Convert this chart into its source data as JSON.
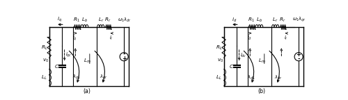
{
  "fig_width": 5.0,
  "fig_height": 1.44,
  "dpi": 100,
  "bg_color": "#ffffff",
  "circuits": [
    {
      "top_curr": "i_q",
      "ir_lbl": "i_r",
      "ic_lbl": "i_{qc}",
      "i1_lbl": "i_q",
      "rl_lbl": "R_L",
      "ll_lbl": "L_L",
      "v0_lbl": "v_0",
      "r1_lbl": "R_1",
      "lb_lbl": "L_b",
      "lr_lbl": "L_r",
      "rr_lbl": "R_r",
      "src_lbl": "\\omega_1\\lambda_{dr}",
      "c_lbl": "C",
      "lm_lbl": "L_m",
      "lam1_lbl": "\\lambda_{q1}",
      "lamr_lbl": "\\lambda_{qr}",
      "sub_lbl": "(a)",
      "src_pm_top": "-",
      "src_pm_bot": "+",
      "i1_up": true,
      "ir_up": false
    },
    {
      "top_curr": "i_d",
      "ir_lbl": "i_r",
      "ic_lbl": "i_{dc}",
      "i1_lbl": "i_d",
      "rl_lbl": "R_L",
      "ll_lbl": "L_L",
      "v0_lbl": "v_0",
      "r1_lbl": "R_1",
      "lb_lbl": "L_b",
      "lr_lbl": "L_r",
      "rr_lbl": "R_r",
      "src_lbl": "\\omega_1\\lambda_{qr}",
      "c_lbl": "C",
      "lm_lbl": "L_m",
      "lam1_lbl": "\\lambda_{d1}",
      "lamr_lbl": "\\lambda_{dr}",
      "sub_lbl": "(b)",
      "src_pm_top": "+",
      "src_pm_bot": "-",
      "i1_up": true,
      "ir_up": true
    }
  ]
}
